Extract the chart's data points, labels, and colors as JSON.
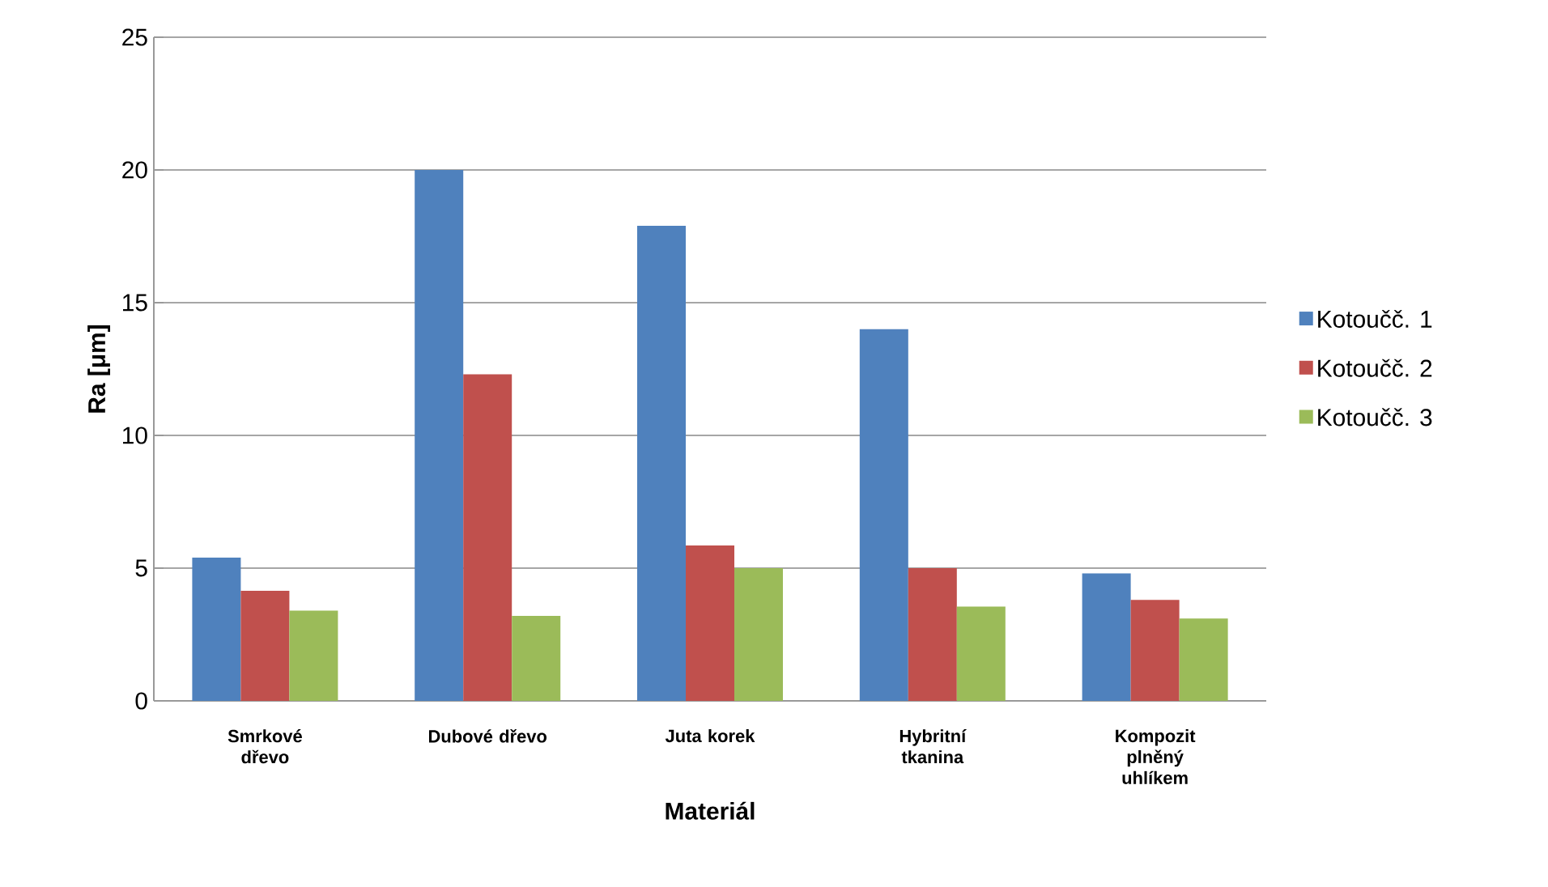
{
  "chart_data": {
    "type": "bar",
    "xlabel": "Materiál",
    "ylabel": "Ra [μm]",
    "categories": [
      "Smrkové dřevo",
      "Dubové dřevo",
      "Juta korek",
      "Hybritní tkanina",
      "Kompozit plněný uhlíkem"
    ],
    "series": [
      {
        "name": "Kotoučč. 1",
        "color": "#4f81bd",
        "values": [
          5.4,
          20,
          17.9,
          14.0,
          4.8
        ]
      },
      {
        "name": "Kotoučč. 2",
        "color": "#c0504d",
        "values": [
          4.15,
          12.3,
          5.85,
          5.0,
          3.8
        ]
      },
      {
        "name": "Kotoučč. 3",
        "color": "#9bbb59",
        "values": [
          3.4,
          3.2,
          5.0,
          3.55,
          3.1
        ]
      }
    ],
    "ylim": [
      0,
      25
    ],
    "yticks": [
      0,
      5,
      10,
      15,
      20,
      25
    ],
    "grid": "y",
    "legend": "right"
  }
}
